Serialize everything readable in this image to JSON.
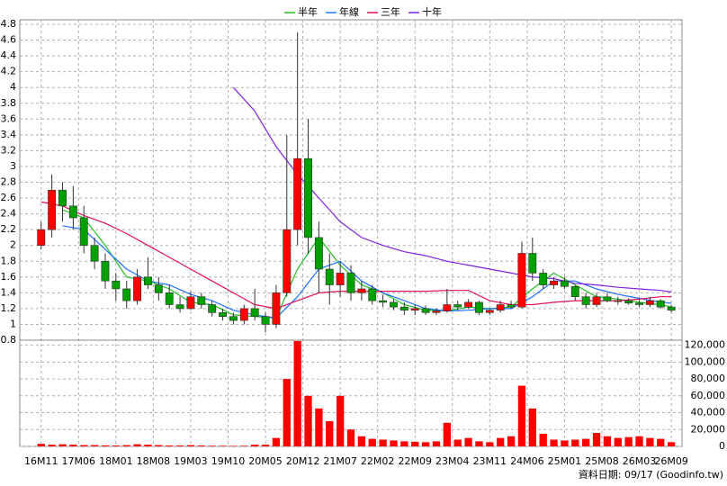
{
  "chart_data": {
    "type": "candlestick",
    "x": [
      0,
      2,
      4,
      6,
      8,
      10,
      12,
      14,
      16,
      18,
      20,
      22,
      24,
      26,
      28,
      30,
      32,
      34,
      36,
      38,
      40,
      42,
      44,
      46,
      48,
      50,
      52,
      54,
      56,
      58,
      60,
      62,
      64,
      66,
      68,
      70,
      72,
      74,
      76,
      78,
      80,
      82,
      84,
      86,
      88,
      90,
      92,
      94,
      96,
      98,
      100,
      102,
      104,
      106,
      108,
      110,
      112,
      114,
      116,
      118
    ],
    "open": [
      2.0,
      2.2,
      2.7,
      2.5,
      2.35,
      2.0,
      1.8,
      1.55,
      1.45,
      1.3,
      1.6,
      1.5,
      1.4,
      1.25,
      1.2,
      1.35,
      1.25,
      1.15,
      1.1,
      1.05,
      1.2,
      1.1,
      1.0,
      1.4,
      2.2,
      3.1,
      2.1,
      1.7,
      1.5,
      1.65,
      1.4,
      1.45,
      1.3,
      1.28,
      1.22,
      1.18,
      1.2,
      1.15,
      1.17,
      1.25,
      1.22,
      1.28,
      1.15,
      1.18,
      1.25,
      1.22,
      1.9,
      1.65,
      1.5,
      1.55,
      1.48,
      1.35,
      1.25,
      1.35,
      1.3,
      1.3,
      1.27,
      1.25,
      1.3,
      1.22
    ],
    "high": [
      2.3,
      2.9,
      2.8,
      2.75,
      2.5,
      2.1,
      1.9,
      1.65,
      1.55,
      1.7,
      1.85,
      1.6,
      1.5,
      1.35,
      1.42,
      1.4,
      1.3,
      1.2,
      1.15,
      1.25,
      1.45,
      1.15,
      1.5,
      3.4,
      4.7,
      3.6,
      2.3,
      1.9,
      1.8,
      1.75,
      1.55,
      1.5,
      1.38,
      1.32,
      1.28,
      1.25,
      1.24,
      1.2,
      1.45,
      1.3,
      1.32,
      1.3,
      1.2,
      1.3,
      1.3,
      2.05,
      2.1,
      1.7,
      1.6,
      1.6,
      1.5,
      1.4,
      1.4,
      1.4,
      1.35,
      1.33,
      1.32,
      1.35,
      1.32,
      1.25
    ],
    "low": [
      1.95,
      2.1,
      2.3,
      2.2,
      1.9,
      1.7,
      1.45,
      1.3,
      1.2,
      1.25,
      1.45,
      1.3,
      1.2,
      1.15,
      1.18,
      1.2,
      1.1,
      1.05,
      1.0,
      1.0,
      1.05,
      0.9,
      0.95,
      1.35,
      2.0,
      1.9,
      1.4,
      1.25,
      1.35,
      1.3,
      1.3,
      1.25,
      1.22,
      1.18,
      1.12,
      1.12,
      1.12,
      1.12,
      1.15,
      1.18,
      1.2,
      1.12,
      1.12,
      1.15,
      1.2,
      1.2,
      1.55,
      1.45,
      1.45,
      1.45,
      1.3,
      1.2,
      1.22,
      1.28,
      1.25,
      1.25,
      1.22,
      1.22,
      1.2,
      1.15
    ],
    "close": [
      2.2,
      2.7,
      2.5,
      2.35,
      2.0,
      1.8,
      1.55,
      1.45,
      1.3,
      1.6,
      1.5,
      1.4,
      1.25,
      1.2,
      1.35,
      1.25,
      1.15,
      1.1,
      1.05,
      1.2,
      1.1,
      1.0,
      1.4,
      2.2,
      3.1,
      2.1,
      1.7,
      1.5,
      1.65,
      1.4,
      1.45,
      1.3,
      1.28,
      1.22,
      1.18,
      1.2,
      1.15,
      1.17,
      1.25,
      1.22,
      1.28,
      1.15,
      1.18,
      1.25,
      1.22,
      1.9,
      1.65,
      1.5,
      1.55,
      1.48,
      1.35,
      1.25,
      1.35,
      1.3,
      1.3,
      1.27,
      1.25,
      1.3,
      1.22,
      1.18
    ],
    "up_color": "#ff0000",
    "down_color": "#00a000",
    "volume": {
      "color": "#ff0000",
      "axis": "y2",
      "values": [
        3000,
        2000,
        2500,
        2000,
        1500,
        1500,
        1200,
        1000,
        1500,
        2500,
        2000,
        1500,
        1000,
        1000,
        1500,
        1000,
        800,
        700,
        600,
        700,
        2000,
        2000,
        10000,
        80000,
        125000,
        60000,
        45000,
        30000,
        60000,
        20000,
        12000,
        9000,
        8000,
        7000,
        6000,
        5500,
        5000,
        6000,
        28000,
        8000,
        10000,
        6000,
        5000,
        10000,
        12000,
        72000,
        45000,
        15000,
        8000,
        7000,
        8000,
        9000,
        16000,
        12000,
        10000,
        11000,
        12000,
        10000,
        9000,
        5000
      ]
    },
    "series": [
      {
        "name": "半年",
        "color": "#22c022",
        "x": [
          4,
          8,
          12,
          16,
          20,
          24,
          28,
          32,
          36,
          40,
          44,
          48,
          52,
          56,
          60,
          64,
          68,
          72,
          76,
          80,
          84,
          88,
          92,
          96,
          100,
          104,
          108,
          112,
          116,
          118
        ],
        "values": [
          2.45,
          2.35,
          2.0,
          1.6,
          1.55,
          1.45,
          1.28,
          1.25,
          1.12,
          1.1,
          1.08,
          1.7,
          2.1,
          1.75,
          1.5,
          1.4,
          1.25,
          1.18,
          1.17,
          1.22,
          1.2,
          1.22,
          1.45,
          1.65,
          1.5,
          1.35,
          1.32,
          1.28,
          1.25,
          1.22
        ]
      },
      {
        "name": "年線",
        "color": "#1e6fff",
        "x": [
          4,
          8,
          12,
          16,
          20,
          24,
          28,
          32,
          36,
          40,
          44,
          48,
          52,
          56,
          60,
          64,
          68,
          72,
          76,
          80,
          84,
          88,
          92,
          96,
          100,
          104,
          108,
          112,
          116,
          118
        ],
        "values": [
          2.25,
          2.2,
          1.95,
          1.7,
          1.55,
          1.5,
          1.38,
          1.3,
          1.18,
          1.12,
          1.08,
          1.35,
          1.7,
          1.8,
          1.55,
          1.4,
          1.3,
          1.2,
          1.17,
          1.18,
          1.2,
          1.2,
          1.35,
          1.55,
          1.55,
          1.45,
          1.38,
          1.33,
          1.28,
          1.27
        ]
      },
      {
        "name": "三年",
        "color": "#e0105a",
        "x": [
          0,
          4,
          8,
          12,
          16,
          20,
          24,
          28,
          32,
          36,
          40,
          44,
          48,
          52,
          56,
          60,
          64,
          68,
          72,
          76,
          80,
          84,
          88,
          92,
          96,
          100,
          104,
          108,
          112,
          116,
          118
        ],
        "values": [
          2.55,
          2.5,
          2.38,
          2.28,
          2.15,
          2.0,
          1.85,
          1.7,
          1.55,
          1.4,
          1.25,
          1.2,
          1.3,
          1.4,
          1.42,
          1.42,
          1.42,
          1.42,
          1.42,
          1.43,
          1.43,
          1.3,
          1.25,
          1.25,
          1.28,
          1.3,
          1.3,
          1.3,
          1.32,
          1.35,
          1.35
        ]
      },
      {
        "name": "十年",
        "color": "#8020e0",
        "x": [
          36,
          40,
          44,
          48,
          52,
          56,
          60,
          64,
          68,
          72,
          76,
          80,
          84,
          88,
          92,
          96,
          100,
          104,
          108,
          112,
          116,
          118
        ],
        "values": [
          4.0,
          3.7,
          3.25,
          2.9,
          2.6,
          2.3,
          2.1,
          2.0,
          1.92,
          1.87,
          1.8,
          1.75,
          1.7,
          1.65,
          1.6,
          1.58,
          1.52,
          1.5,
          1.47,
          1.45,
          1.43,
          1.41
        ]
      }
    ],
    "xlim": [
      -4,
      120
    ],
    "xticks": [
      {
        "value": 0,
        "label": "16M11"
      },
      {
        "value": 7,
        "label": "17M06"
      },
      {
        "value": 14,
        "label": "18M01"
      },
      {
        "value": 21,
        "label": "18M08"
      },
      {
        "value": 28,
        "label": "19M03"
      },
      {
        "value": 35,
        "label": "19M10"
      },
      {
        "value": 42,
        "label": "20M05"
      },
      {
        "value": 49,
        "label": "20M12"
      },
      {
        "value": 56,
        "label": "21M07"
      },
      {
        "value": 63,
        "label": "22M02"
      },
      {
        "value": 70,
        "label": "22M09"
      },
      {
        "value": 77,
        "label": "23M04"
      },
      {
        "value": 84,
        "label": "23M11"
      },
      {
        "value": 91,
        "label": "24M06"
      },
      {
        "value": 98,
        "label": "25M01"
      },
      {
        "value": 105,
        "label": "25M08"
      },
      {
        "value": 112,
        "label": "26M03"
      },
      {
        "value": 118,
        "label": "26M09"
      }
    ],
    "ylim": [
      0.8,
      4.8
    ],
    "yticks": [
      0.8,
      1,
      1.2,
      1.4,
      1.6,
      1.8,
      2,
      2.2,
      2.4,
      2.6,
      2.8,
      3,
      3.2,
      3.4,
      3.6,
      3.8,
      4,
      4.2,
      4.4,
      4.6,
      4.8
    ],
    "y2lim": [
      0,
      126000
    ],
    "y2ticks": [
      0,
      {
        "value": 20000,
        "label": "20,000"
      },
      {
        "value": 40000,
        "label": "40,000"
      },
      {
        "value": 60000,
        "label": "60,000"
      },
      {
        "value": 80000,
        "label": "80,000"
      },
      {
        "value": 100000,
        "label": "100,000"
      },
      {
        "value": 120000,
        "label": "120,000"
      }
    ],
    "grid": true,
    "legend": "top",
    "footer": "資料日期: 09/17  (Goodinfo.tw)"
  }
}
